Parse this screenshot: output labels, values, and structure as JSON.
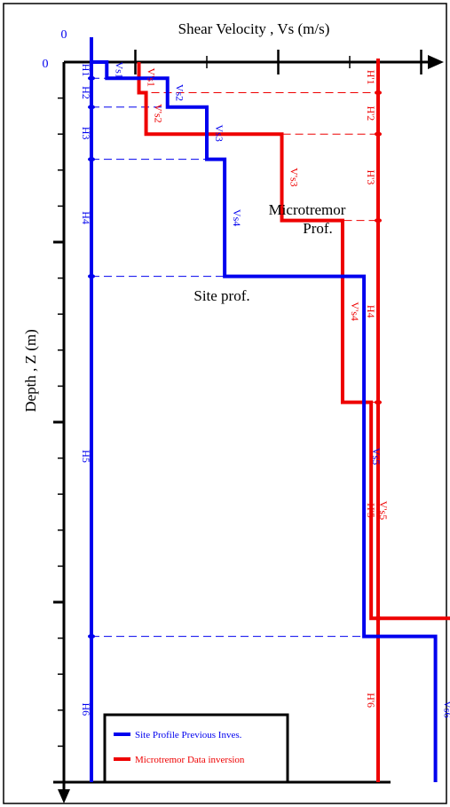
{
  "axis": {
    "title": "Shear Velocity , Vs (m/s)",
    "ylabel": "Depth , Z (m)",
    "origin_x": "0",
    "origin_y": "0"
  },
  "annotations": {
    "microtremor_1": "Microtremor",
    "microtremor_2": "Prof.",
    "site": "Site prof."
  },
  "legend": {
    "site": "Site Profile Previous Inves.",
    "micro": "Microtremor Data inversion"
  },
  "colors": {
    "site": "#0000ee",
    "micro": "#ee0000",
    "axis": "#000000"
  },
  "chart_data": {
    "type": "line",
    "x_ticks": [
      0,
      1,
      2,
      3,
      4,
      5,
      6,
      7,
      8,
      9
    ],
    "y_ticks": [
      0,
      1,
      2,
      3,
      4,
      5,
      6,
      7,
      8,
      9,
      10,
      11,
      12,
      13,
      14,
      15,
      16,
      17,
      18,
      19,
      20
    ],
    "series": [
      {
        "name": "Site Profile Previous Inves.",
        "profile": [
          {
            "vs": 0.6,
            "top": 0,
            "bottom": 0.45
          },
          {
            "vs": 1.45,
            "top": 0.45,
            "bottom": 1.25
          },
          {
            "vs": 2.0,
            "top": 1.25,
            "bottom": 2.7
          },
          {
            "vs": 2.25,
            "top": 2.7,
            "bottom": 5.95
          },
          {
            "vs": 4.2,
            "top": 5.95,
            "bottom": 15.95
          },
          {
            "vs": 5.2,
            "top": 15.95,
            "bottom": 20
          }
        ],
        "layer_labels": [
          "Vs1",
          "Vs2",
          "Vs3",
          "Vs4",
          "Vs5",
          "Vs6"
        ],
        "thickness_labels": [
          "H1",
          "H2",
          "H3",
          "H4",
          "H5",
          "H6"
        ]
      },
      {
        "name": "Microtremor Data inversion",
        "profile": [
          {
            "vs": 1.05,
            "top": 0,
            "bottom": 0.85
          },
          {
            "vs": 1.15,
            "top": 0.85,
            "bottom": 2.0
          },
          {
            "vs": 3.05,
            "top": 2.0,
            "bottom": 4.4
          },
          {
            "vs": 3.9,
            "top": 4.4,
            "bottom": 9.45
          },
          {
            "vs": 4.3,
            "top": 9.45,
            "bottom": 15.45
          },
          {
            "vs": 5.75,
            "top": 15.45,
            "bottom": 20
          }
        ],
        "layer_labels": [
          "V's1",
          "V's2",
          "V's3",
          "V's4",
          "V's5",
          "Vs6"
        ],
        "thickness_labels": [
          "H'1",
          "H'2",
          "H'3",
          "H4",
          "H'5",
          "H'6"
        ]
      }
    ]
  }
}
